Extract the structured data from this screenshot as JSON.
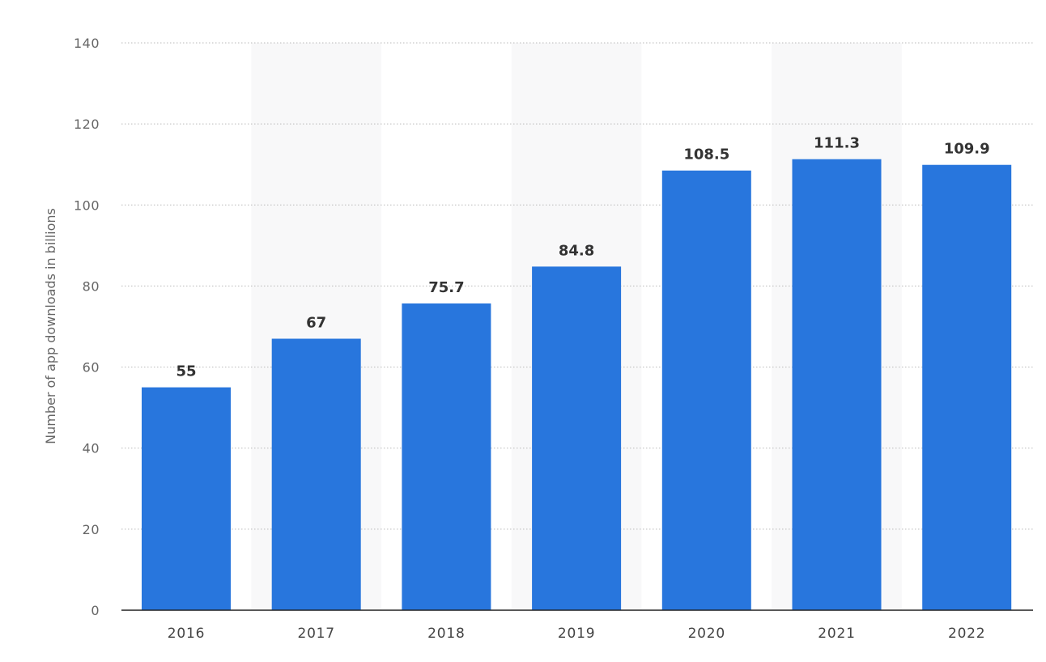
{
  "chart_data": {
    "type": "bar",
    "categories": [
      "2016",
      "2017",
      "2018",
      "2019",
      "2020",
      "2021",
      "2022"
    ],
    "values": [
      55,
      67,
      75.7,
      84.8,
      108.5,
      111.3,
      109.9
    ],
    "value_labels": [
      "55",
      "67",
      "75.7",
      "84.8",
      "108.5",
      "111.3",
      "109.9"
    ],
    "ylabel": "Number of app downloads in billions",
    "xlabel": "",
    "ylim": [
      0,
      140
    ],
    "yticks": [
      0,
      20,
      40,
      60,
      80,
      100,
      120,
      140
    ],
    "ytick_labels": [
      "0",
      "20",
      "40",
      "60",
      "80",
      "100",
      "120",
      "140"
    ],
    "grid": true,
    "grid_style": "dotted",
    "alternating_column_shading": true,
    "bar_color": "#2876dd",
    "shade_color": "#f8f8f9",
    "grid_color": "#b9b9b9",
    "axis_color": "#222222"
  }
}
